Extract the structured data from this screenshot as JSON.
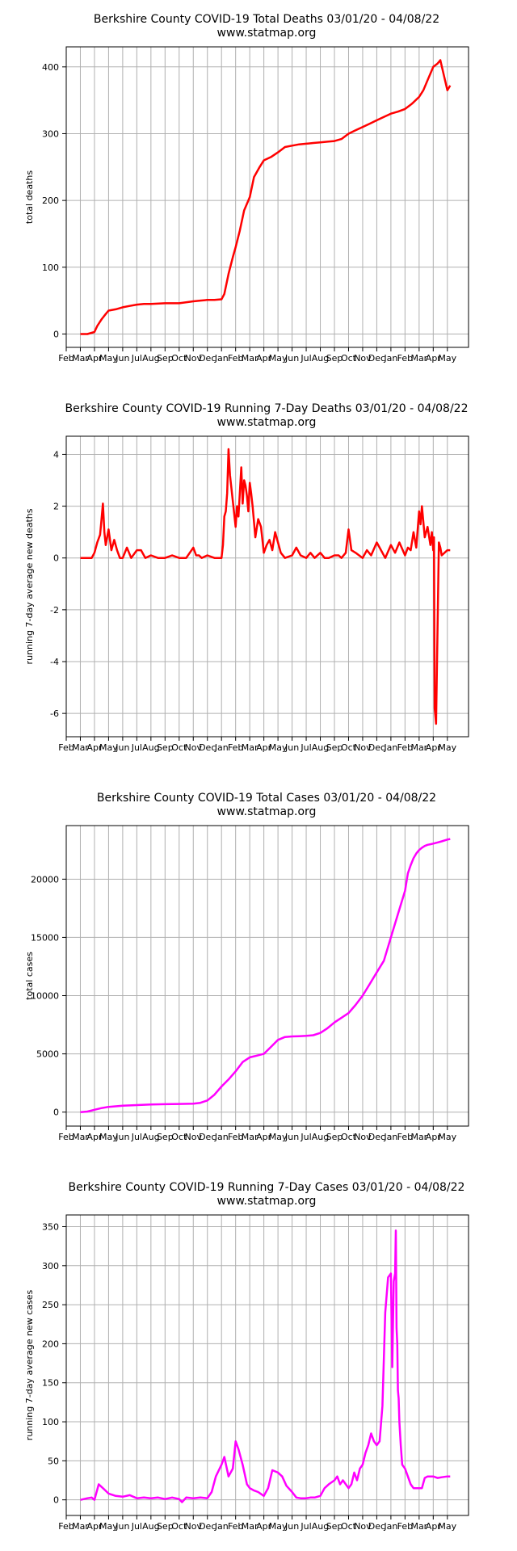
{
  "site": "www.statmap.org",
  "chart_data": [
    {
      "type": "line",
      "title": "Berkshire County COVID-19 Total Deaths 03/01/20 - 04/08/22",
      "subtitle": "www.statmap.org",
      "xlabel": "",
      "ylabel": "total deaths",
      "color": "#ff0000",
      "grid": true,
      "x_ticks": [
        "Feb",
        "Mar",
        "Apr",
        "May",
        "Jun",
        "Jul",
        "Aug",
        "Sep",
        "Oct",
        "Nov",
        "Dec",
        "Jan",
        "Feb",
        "Mar",
        "Apr",
        "May",
        "Jun",
        "Jul",
        "Aug",
        "Sep",
        "Oct",
        "Nov",
        "Dec",
        "Jan",
        "Feb",
        "Mar",
        "Apr",
        "May"
      ],
      "y_ticks": [
        0,
        100,
        200,
        300,
        400
      ],
      "ylim": [
        -20,
        430
      ],
      "series": [
        {
          "x": [
            1,
            1.5,
            2,
            2.2,
            2.5,
            2.8,
            3,
            3.5,
            4,
            4.5,
            5,
            5.5,
            6,
            7,
            8,
            9,
            9.5,
            10,
            10.5,
            11,
            11.2,
            11.5,
            11.8,
            12,
            12.3,
            12.6,
            13,
            13.3,
            13.7,
            14,
            14.5,
            15,
            15.5,
            16,
            16.5,
            17,
            17.5,
            18,
            18.5,
            19,
            19.5,
            20,
            20.5,
            21,
            21.5,
            22,
            22.5,
            23,
            23.5,
            24,
            24.5,
            25,
            25.3,
            25.6,
            25.8,
            25.9,
            26,
            26.3,
            26.5,
            27,
            27.2
          ],
          "y": [
            0,
            0,
            3,
            12,
            22,
            30,
            35,
            37,
            40,
            42,
            44,
            45,
            45,
            46,
            46,
            49,
            50,
            51,
            51,
            52,
            60,
            90,
            115,
            130,
            155,
            185,
            205,
            235,
            250,
            260,
            265,
            272,
            280,
            282,
            284,
            285,
            286,
            287,
            288,
            289,
            292,
            300,
            305,
            310,
            315,
            320,
            325,
            330,
            333,
            337,
            345,
            355,
            365,
            380,
            390,
            395,
            400,
            405,
            410,
            365,
            372
          ]
        }
      ]
    },
    {
      "type": "line",
      "title": "Berkshire County COVID-19 Running 7-Day Deaths 03/01/20 - 04/08/22",
      "subtitle": "www.statmap.org",
      "xlabel": "",
      "ylabel": "running 7-day average new deaths",
      "color": "#ff0000",
      "grid": true,
      "x_ticks": [
        "Feb",
        "Mar",
        "Apr",
        "May",
        "Jun",
        "Jul",
        "Aug",
        "Sep",
        "Oct",
        "Nov",
        "Dec",
        "Jan",
        "Feb",
        "Mar",
        "Apr",
        "May",
        "Jun",
        "Jul",
        "Aug",
        "Sep",
        "Oct",
        "Nov",
        "Dec",
        "Jan",
        "Feb",
        "Mar",
        "Apr",
        "May"
      ],
      "y_ticks": [
        -6,
        -4,
        -2,
        0,
        2,
        4
      ],
      "ylim": [
        -6.9,
        4.7
      ],
      "series": [
        {
          "x": [
            1,
            1.5,
            1.8,
            2,
            2.2,
            2.4,
            2.5,
            2.6,
            2.7,
            2.8,
            3,
            3.2,
            3.4,
            3.6,
            3.8,
            4,
            4.3,
            4.6,
            5,
            5.3,
            5.6,
            6,
            6.5,
            7,
            7.5,
            8,
            8.5,
            9,
            9.2,
            9.4,
            9.6,
            10,
            10.5,
            11,
            11.1,
            11.2,
            11.3,
            11.4,
            11.5,
            11.6,
            11.8,
            12,
            12.1,
            12.2,
            12.4,
            12.5,
            12.6,
            12.7,
            12.8,
            12.9,
            13,
            13.1,
            13.2,
            13.3,
            13.4,
            13.6,
            13.8,
            14,
            14.2,
            14.4,
            14.6,
            14.8,
            15,
            15.2,
            15.5,
            16,
            16.3,
            16.6,
            17,
            17.3,
            17.6,
            18,
            18.3,
            18.6,
            19,
            19.3,
            19.5,
            19.8,
            20,
            20.2,
            20.5,
            21,
            21.3,
            21.6,
            22,
            22.3,
            22.6,
            23,
            23.3,
            23.6,
            24,
            24.2,
            24.4,
            24.6,
            24.8,
            25,
            25.1,
            25.2,
            25.4,
            25.6,
            25.8,
            25.9,
            26,
            26.05,
            26.1,
            26.2,
            26.4,
            26.5,
            26.6,
            27,
            27.2
          ],
          "y": [
            0,
            0,
            0,
            0.2,
            0.6,
            0.9,
            1.5,
            2.1,
            1,
            0.5,
            1.1,
            0.3,
            0.7,
            0.3,
            0,
            0,
            0.4,
            0,
            0.3,
            0.3,
            0,
            0.1,
            0,
            0,
            0.1,
            0,
            0,
            0.4,
            0.1,
            0.1,
            0,
            0.1,
            0,
            0,
            0.5,
            1.6,
            1.8,
            2.5,
            4.2,
            3.2,
            2.2,
            1.2,
            2,
            1.6,
            3.5,
            2.1,
            3,
            2.8,
            2.4,
            1.8,
            2.9,
            2.5,
            2,
            1.4,
            0.8,
            1.5,
            1.2,
            0.2,
            0.5,
            0.7,
            0.3,
            1,
            0.6,
            0.2,
            0,
            0.1,
            0.4,
            0.1,
            0,
            0.2,
            0,
            0.2,
            0,
            0,
            0.1,
            0.1,
            0,
            0.2,
            1.1,
            0.3,
            0.2,
            0,
            0.3,
            0.1,
            0.6,
            0.3,
            0,
            0.5,
            0.2,
            0.6,
            0.1,
            0.4,
            0.3,
            1,
            0.4,
            1.8,
            1.3,
            2,
            0.8,
            1.2,
            0.5,
            1,
            0.3,
            0.8,
            -5.8,
            -6.4,
            0.6,
            0.4,
            0.1,
            0.3,
            0.3
          ]
        }
      ]
    },
    {
      "type": "line",
      "title": "Berkshire County COVID-19 Total Cases 03/01/20 - 04/08/22",
      "subtitle": "www.statmap.org",
      "xlabel": "",
      "ylabel": "total cases",
      "color": "#ff00ff",
      "grid": true,
      "x_ticks": [
        "Feb",
        "Mar",
        "Apr",
        "May",
        "Jun",
        "Jul",
        "Aug",
        "Sep",
        "Oct",
        "Nov",
        "Dec",
        "Jan",
        "Feb",
        "Mar",
        "Apr",
        "May",
        "Jun",
        "Jul",
        "Aug",
        "Sep",
        "Oct",
        "Nov",
        "Dec",
        "Jan",
        "Feb",
        "Mar",
        "Apr",
        "May"
      ],
      "y_ticks": [
        0,
        5000,
        10000,
        15000,
        20000
      ],
      "ylim": [
        -1200,
        24600
      ],
      "series": [
        {
          "x": [
            1,
            1.5,
            2,
            2.5,
            3,
            4,
            5,
            6,
            7,
            8,
            9,
            9.5,
            10,
            10.5,
            11,
            11.5,
            12,
            12.5,
            13,
            13.5,
            14,
            14.5,
            15,
            15.5,
            16,
            16.5,
            17,
            17.5,
            18,
            18.5,
            19,
            19.5,
            20,
            20.5,
            21,
            21.5,
            22,
            22.5,
            23,
            23.5,
            24,
            24.2,
            24.4,
            24.6,
            24.8,
            25,
            25.2,
            25.4,
            25.6,
            25.8,
            26,
            26.3,
            26.6,
            27,
            27.2
          ],
          "y": [
            0,
            50,
            200,
            350,
            450,
            550,
            600,
            650,
            680,
            700,
            730,
            800,
            1000,
            1500,
            2200,
            2800,
            3500,
            4300,
            4700,
            4850,
            5000,
            5600,
            6200,
            6450,
            6500,
            6520,
            6550,
            6600,
            6800,
            7200,
            7700,
            8100,
            8500,
            9200,
            10000,
            11000,
            12000,
            13000,
            15000,
            17000,
            19000,
            20500,
            21200,
            21800,
            22200,
            22500,
            22700,
            22850,
            22950,
            23000,
            23050,
            23150,
            23250,
            23400,
            23450
          ]
        }
      ]
    },
    {
      "type": "line",
      "title": "Berkshire County COVID-19 Running 7-Day Cases 03/01/20 - 04/08/22",
      "subtitle": "www.statmap.org",
      "xlabel": "",
      "ylabel": "running 7-day average new cases",
      "color": "#ff00ff",
      "grid": true,
      "x_ticks": [
        "Feb",
        "Mar",
        "Apr",
        "May",
        "Jun",
        "Jul",
        "Aug",
        "Sep",
        "Oct",
        "Nov",
        "Dec",
        "Jan",
        "Feb",
        "Mar",
        "Apr",
        "May",
        "Jun",
        "Jul",
        "Aug",
        "Sep",
        "Oct",
        "Nov",
        "Dec",
        "Jan",
        "Feb",
        "Mar",
        "Apr",
        "May"
      ],
      "y_ticks": [
        0,
        50,
        100,
        150,
        200,
        250,
        300,
        350
      ],
      "ylim": [
        -20,
        365
      ],
      "series": [
        {
          "x": [
            1,
            1.5,
            1.8,
            2,
            2.3,
            2.6,
            3,
            3.5,
            4,
            4.5,
            5,
            5.5,
            6,
            6.5,
            7,
            7.5,
            8,
            8.2,
            8.5,
            9,
            9.5,
            10,
            10.3,
            10.6,
            11,
            11.2,
            11.5,
            11.8,
            12,
            12.2,
            12.5,
            12.8,
            13,
            13.3,
            13.6,
            14,
            14.3,
            14.6,
            15,
            15.3,
            15.6,
            16,
            16.3,
            16.6,
            17,
            17.3,
            17.6,
            18,
            18.3,
            18.6,
            19,
            19.2,
            19.4,
            19.6,
            19.8,
            20,
            20.2,
            20.4,
            20.6,
            20.8,
            21,
            21.2,
            21.4,
            21.6,
            21.8,
            22,
            22.2,
            22.4,
            22.6,
            22.8,
            23,
            23.1,
            23.2,
            23.3,
            23.35,
            23.4,
            23.45,
            23.5,
            23.55,
            23.6,
            23.7,
            23.8,
            24,
            24.2,
            24.4,
            24.6,
            24.8,
            25,
            25.2,
            25.4,
            25.6,
            25.8,
            26,
            26.3,
            26.6,
            27,
            27.2
          ],
          "y": [
            0,
            2,
            3,
            0,
            20,
            15,
            8,
            5,
            4,
            6,
            2,
            3,
            2,
            3,
            1,
            3,
            1,
            -3,
            3,
            2,
            3,
            2,
            10,
            30,
            45,
            55,
            30,
            40,
            75,
            65,
            45,
            20,
            15,
            12,
            10,
            5,
            15,
            38,
            35,
            30,
            18,
            10,
            3,
            2,
            2,
            3,
            3,
            5,
            15,
            20,
            25,
            30,
            20,
            25,
            20,
            15,
            20,
            35,
            25,
            40,
            45,
            60,
            70,
            85,
            75,
            70,
            75,
            120,
            240,
            285,
            290,
            170,
            280,
            290,
            345,
            220,
            200,
            140,
            130,
            100,
            70,
            45,
            40,
            30,
            20,
            15,
            15,
            15,
            15,
            28,
            30,
            30,
            30,
            28,
            29,
            30,
            30
          ]
        }
      ]
    }
  ]
}
